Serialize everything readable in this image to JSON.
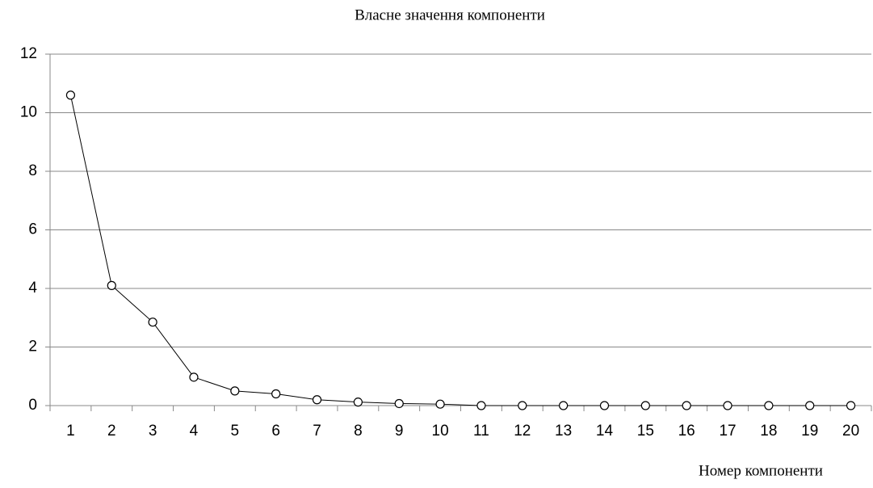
{
  "chart_data": {
    "type": "line",
    "title": "Власне значення компоненти",
    "x_label": "Номер компоненти",
    "categories": [
      "1",
      "2",
      "3",
      "4",
      "5",
      "6",
      "7",
      "8",
      "9",
      "10",
      "11",
      "12",
      "13",
      "14",
      "15",
      "16",
      "17",
      "18",
      "19",
      "20"
    ],
    "series": [
      {
        "name": null,
        "color": "#000000",
        "values": [
          10.6,
          4.1,
          2.85,
          0.97,
          0.5,
          0.4,
          0.2,
          0.12,
          0.07,
          0.05,
          0,
          0,
          0,
          0,
          0,
          0,
          0,
          0,
          0,
          0
        ]
      }
    ],
    "ylim": [
      0,
      12
    ],
    "yticks": [
      0,
      2,
      4,
      6,
      8,
      10,
      12
    ],
    "grid": true
  }
}
